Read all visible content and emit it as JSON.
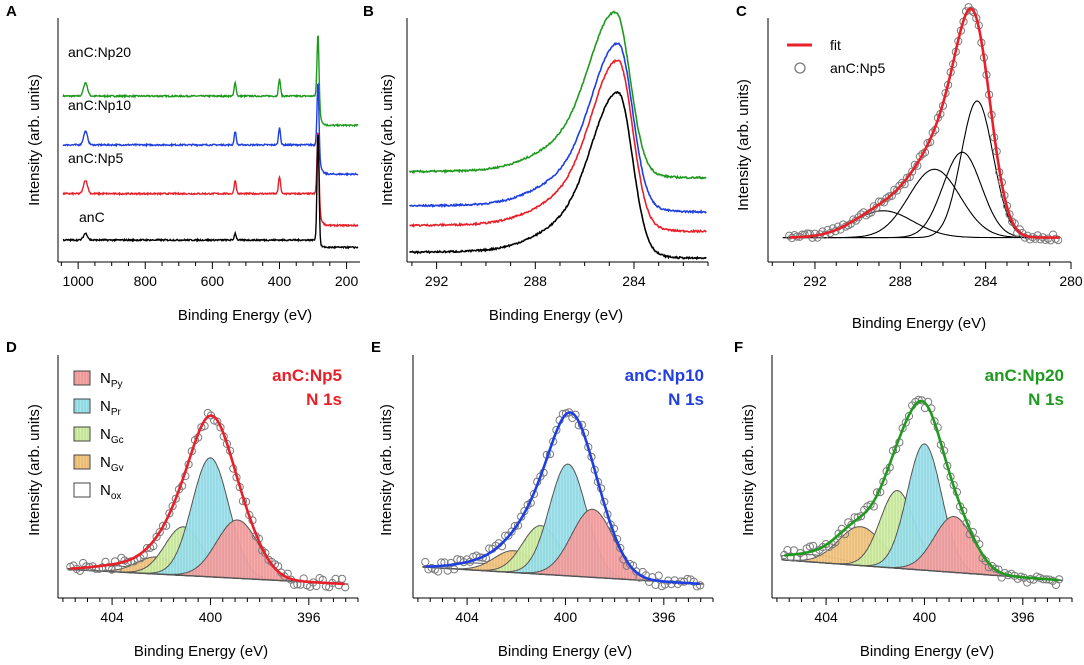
{
  "colors": {
    "green": "#1f9a1f",
    "blue": "#1f3fe0",
    "red": "#e8202a",
    "black": "#000000",
    "fit": "#e8202a",
    "marker": "#7a7a7a",
    "npy": "#f4a8a8",
    "npr": "#a6e3ec",
    "ngc": "#c9e8a0",
    "ngv": "#f3c98a",
    "nox": "#ffffff"
  },
  "chart_data": [
    {
      "panel": "A",
      "type": "line",
      "xlabel": "Binding Energy (eV)",
      "ylabel": "Intensity (arb. units)",
      "xlim": [
        1060,
        160
      ],
      "xreversed": true,
      "ylim": [
        0,
        10
      ],
      "xticks": [
        1000,
        800,
        600,
        400,
        200
      ],
      "xticklabels": [
        "1000",
        "800",
        "600",
        "400",
        "200"
      ],
      "series": [
        {
          "name": "anC:Np20",
          "color": "green",
          "offset": 6.8,
          "step": 1.2
        },
        {
          "name": "anC:Np10",
          "color": "blue",
          "offset": 4.8,
          "step": 1.2
        },
        {
          "name": "anC:Np5",
          "color": "red",
          "offset": 2.8,
          "step": 1.3
        },
        {
          "name": "anC",
          "color": "black",
          "offset": 0.9,
          "step": 0.3
        }
      ],
      "peaks": [
        {
          "center": 978,
          "height": 0.55,
          "width": 6
        },
        {
          "center": 532,
          "height": 0.55,
          "width": 3
        },
        {
          "center": 400,
          "height": 0.7,
          "width": 3
        },
        {
          "center": 285,
          "height": 2.6,
          "width": 3
        }
      ]
    },
    {
      "panel": "B",
      "type": "line",
      "xlabel": "Binding Energy (eV)",
      "ylabel": "Intensity (arb. units)",
      "xlim": [
        293.2,
        281.0
      ],
      "xreversed": true,
      "ylim": [
        0,
        10
      ],
      "xticks": [
        292,
        288,
        284
      ],
      "xticklabels": [
        "292",
        "288",
        "284"
      ],
      "series": [
        {
          "name": "anC:Np20",
          "color": "green",
          "offset": 3.7,
          "peak": 5.9,
          "center": 284.7
        },
        {
          "name": "anC:Np10",
          "color": "blue",
          "offset": 2.3,
          "peak": 6.0,
          "center": 284.6
        },
        {
          "name": "anC:Np5",
          "color": "red",
          "offset": 1.5,
          "peak": 6.1,
          "center": 284.6
        },
        {
          "name": "anC",
          "color": "black",
          "offset": 0.4,
          "peak": 5.9,
          "center": 284.6
        }
      ]
    },
    {
      "panel": "C",
      "type": "line",
      "xlabel": "Binding Energy (eV)",
      "ylabel": "Intensity (arb. units)",
      "xlim": [
        294.2,
        280.0
      ],
      "xreversed": true,
      "ylim": [
        0,
        10
      ],
      "xticks": [
        292,
        288,
        284,
        280
      ],
      "xticklabels": [
        "292",
        "288",
        "284",
        "280"
      ],
      "legend": [
        "fit",
        "anC:Np5"
      ],
      "baseline": 1.0,
      "components": [
        {
          "center": 284.4,
          "height": 5.6,
          "width": 0.75
        },
        {
          "center": 285.1,
          "height": 3.5,
          "width": 0.9
        },
        {
          "center": 286.4,
          "height": 2.8,
          "width": 1.2
        },
        {
          "center": 288.8,
          "height": 1.1,
          "width": 1.4
        }
      ]
    },
    {
      "panel": "D",
      "type": "area",
      "title": "anC:Np5",
      "subtitle": "N 1s",
      "title_color": "red",
      "xlabel": "Binding Energy (eV)",
      "ylabel": "Intensity (arb. units)",
      "xlim": [
        406.2,
        394.0
      ],
      "xreversed": true,
      "ylim": [
        0,
        10
      ],
      "xticks": [
        404,
        400,
        396
      ],
      "xticklabels": [
        "404",
        "400",
        "396"
      ],
      "fit_color": "red",
      "baseline": {
        "left": 1.2,
        "right": 0.55
      },
      "legend": [
        {
          "label": "N",
          "sub": "Py",
          "fill": "npy"
        },
        {
          "label": "N",
          "sub": "Pr",
          "fill": "npr"
        },
        {
          "label": "N",
          "sub": "Gc",
          "fill": "ngc"
        },
        {
          "label": "N",
          "sub": "Gv",
          "fill": "ngv"
        },
        {
          "label": "N",
          "sub": "ox",
          "fill": "nox"
        }
      ],
      "components": [
        {
          "name": "Npy",
          "center": 398.9,
          "height": 2.4,
          "width": 0.85
        },
        {
          "name": "Npr",
          "center": 400.0,
          "height": 4.9,
          "width": 0.75
        },
        {
          "name": "Ngc",
          "center": 401.1,
          "height": 2.0,
          "width": 0.75
        },
        {
          "name": "Ngv",
          "center": 402.2,
          "height": 0.7,
          "width": 0.8
        },
        {
          "name": "Nox",
          "center": 403.8,
          "height": 0.25,
          "width": 1.0
        }
      ]
    },
    {
      "panel": "E",
      "type": "area",
      "title": "anC:Np10",
      "subtitle": "N 1s",
      "title_color": "blue",
      "xlabel": "Binding Energy (eV)",
      "ylabel": "Intensity (arb. units)",
      "xlim": [
        406.2,
        394.0
      ],
      "xreversed": true,
      "ylim": [
        0,
        10
      ],
      "xticks": [
        404,
        400,
        396
      ],
      "xticklabels": [
        "404",
        "400",
        "396"
      ],
      "fit_color": "blue",
      "baseline": {
        "left": 1.3,
        "right": 0.55
      },
      "components": [
        {
          "name": "Npy",
          "center": 398.9,
          "height": 2.8,
          "width": 0.85
        },
        {
          "name": "Npr",
          "center": 399.9,
          "height": 4.6,
          "width": 0.75
        },
        {
          "name": "Ngc",
          "center": 401.0,
          "height": 2.0,
          "width": 0.75
        },
        {
          "name": "Ngv",
          "center": 402.1,
          "height": 0.9,
          "width": 0.8
        },
        {
          "name": "Nox",
          "center": 403.5,
          "height": 0.3,
          "width": 1.0
        }
      ]
    },
    {
      "panel": "F",
      "type": "area",
      "title": "anC:Np20",
      "subtitle": "N 1s",
      "title_color": "green",
      "xlabel": "Binding Energy (eV)",
      "ylabel": "Intensity (arb. units)",
      "xlim": [
        406.2,
        394.0
      ],
      "xreversed": true,
      "ylim": [
        0,
        10
      ],
      "xticks": [
        404,
        400,
        396
      ],
      "xticklabels": [
        "404",
        "400",
        "396"
      ],
      "fit_color": "green",
      "baseline": {
        "left": 1.6,
        "right": 0.7
      },
      "components": [
        {
          "name": "Npy",
          "center": 398.8,
          "height": 2.3,
          "width": 0.8
        },
        {
          "name": "Npr",
          "center": 400.0,
          "height": 5.2,
          "width": 0.7
        },
        {
          "name": "Ngc",
          "center": 401.1,
          "height": 3.2,
          "width": 0.7
        },
        {
          "name": "Ngv",
          "center": 402.6,
          "height": 1.6,
          "width": 0.9
        },
        {
          "name": "Nox",
          "center": 404.5,
          "height": 0.3,
          "width": 1.2
        }
      ]
    }
  ]
}
